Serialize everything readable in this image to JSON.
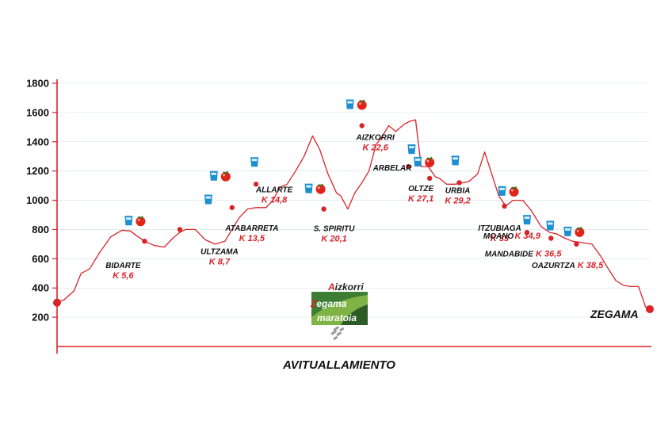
{
  "chart_data": {
    "type": "line",
    "xlabel": "AVITUALLAMIENTO",
    "ylim": [
      0,
      1800
    ],
    "y_ticks": [
      200,
      400,
      600,
      800,
      1000,
      1200,
      1400,
      1600,
      1800
    ],
    "xlim": [
      0,
      42
    ],
    "grid": true,
    "colors": {
      "line": "#d8232a",
      "axis": "#d8232a",
      "grid": "#dfe8ee",
      "water": "#1a8fd1",
      "food": "#e0241c"
    },
    "profile": {
      "x": [
        0,
        0.5,
        1.2,
        1.7,
        2.3,
        3.0,
        3.8,
        4.6,
        5.2,
        5.6,
        6.2,
        6.9,
        7.6,
        8.2,
        8.7,
        9.1,
        9.8,
        10.5,
        11.2,
        11.9,
        12.4,
        12.9,
        13.5,
        14.1,
        14.8,
        15.3,
        15.8,
        16.3,
        16.9,
        17.5,
        18.1,
        18.6,
        19.2,
        19.8,
        20.1,
        20.6,
        21.1,
        21.6,
        22.1,
        22.6,
        23.0,
        23.5,
        24.0,
        24.6,
        25.0,
        25.4,
        25.8,
        26.3,
        26.8,
        27.1,
        27.6,
        28.2,
        28.8,
        29.2,
        29.8,
        30.3,
        30.8,
        31.3,
        31.8,
        32.3,
        33.0,
        33.6,
        34.3,
        34.9,
        35.4,
        36.0,
        36.5,
        37.2,
        37.9,
        38.5,
        39.0,
        39.6,
        40.1,
        40.6,
        41.2,
        41.7,
        42
      ],
      "y": [
        300,
        320,
        380,
        500,
        530,
        640,
        750,
        795,
        790,
        760,
        720,
        690,
        680,
        740,
        780,
        800,
        800,
        730,
        700,
        720,
        800,
        880,
        940,
        950,
        950,
        1000,
        1090,
        1110,
        1200,
        1300,
        1440,
        1350,
        1180,
        1050,
        1030,
        940,
        1050,
        1120,
        1200,
        1380,
        1430,
        1510,
        1470,
        1520,
        1540,
        1550,
        1230,
        1230,
        1160,
        1150,
        1110,
        1110,
        1120,
        1130,
        1180,
        1330,
        1180,
        1030,
        960,
        1000,
        1000,
        930,
        820,
        780,
        770,
        740,
        720,
        710,
        700,
        620,
        540,
        450,
        420,
        410,
        410,
        270,
        250
      ]
    },
    "start": {
      "x": 0,
      "y": 300
    },
    "finish": {
      "x": 42,
      "y": 255,
      "label": "ZEGAMA"
    },
    "stations": [
      {
        "name": "BIDARTE",
        "km": "K 5,6",
        "x": 6.2,
        "y": 720,
        "water": true,
        "food": true
      },
      {
        "name": "ULTZAMA",
        "km": "K 8,7",
        "x": 8.7,
        "y": 800,
        "water": true,
        "food": false
      },
      {
        "name": "ATABARRETA",
        "km": "K 13,5",
        "x": 12.4,
        "y": 950,
        "water": true,
        "food": true
      },
      {
        "name": "ALLARTE",
        "km": "K 14,8",
        "x": 14.1,
        "y": 1110,
        "water": true,
        "food": false
      },
      {
        "name": "S. SPIRITU",
        "km": "K 20,1",
        "x": 18.9,
        "y": 940,
        "water": true,
        "food": true
      },
      {
        "name": "AIZKORRI",
        "km": "K 22,6",
        "x": 21.6,
        "y": 1510,
        "water": true,
        "food": true
      },
      {
        "name": "ARBELAR",
        "km": "",
        "x": 24.9,
        "y": 1230,
        "water": true,
        "food": false
      },
      {
        "name": "OLTZE",
        "km": "K 27,1",
        "x": 26.4,
        "y": 1150,
        "water": true,
        "food": true
      },
      {
        "name": "URBIA",
        "km": "K 29,2",
        "x": 28.5,
        "y": 1120,
        "water": true,
        "food": false
      },
      {
        "name": "ITZUBIAGA",
        "km": "K 33",
        "x": 31.7,
        "y": 960,
        "water": true,
        "food": true
      },
      {
        "name": "MOANO",
        "km": "K 34,9",
        "x": 33.3,
        "y": 780,
        "water": true,
        "food": false
      },
      {
        "name": "MANDABIDE",
        "km": "K 36,5",
        "x": 35.0,
        "y": 740,
        "water": true,
        "food": false
      },
      {
        "name": "OAZURTZA",
        "km": "K 38,5",
        "x": 36.8,
        "y": 700,
        "water": true,
        "food": true
      }
    ]
  },
  "logo": {
    "line1_first": "A",
    "line1_rest": "izkorri",
    "line2_first": "Z",
    "line2_rest": "egama",
    "line3": "maratoia"
  }
}
